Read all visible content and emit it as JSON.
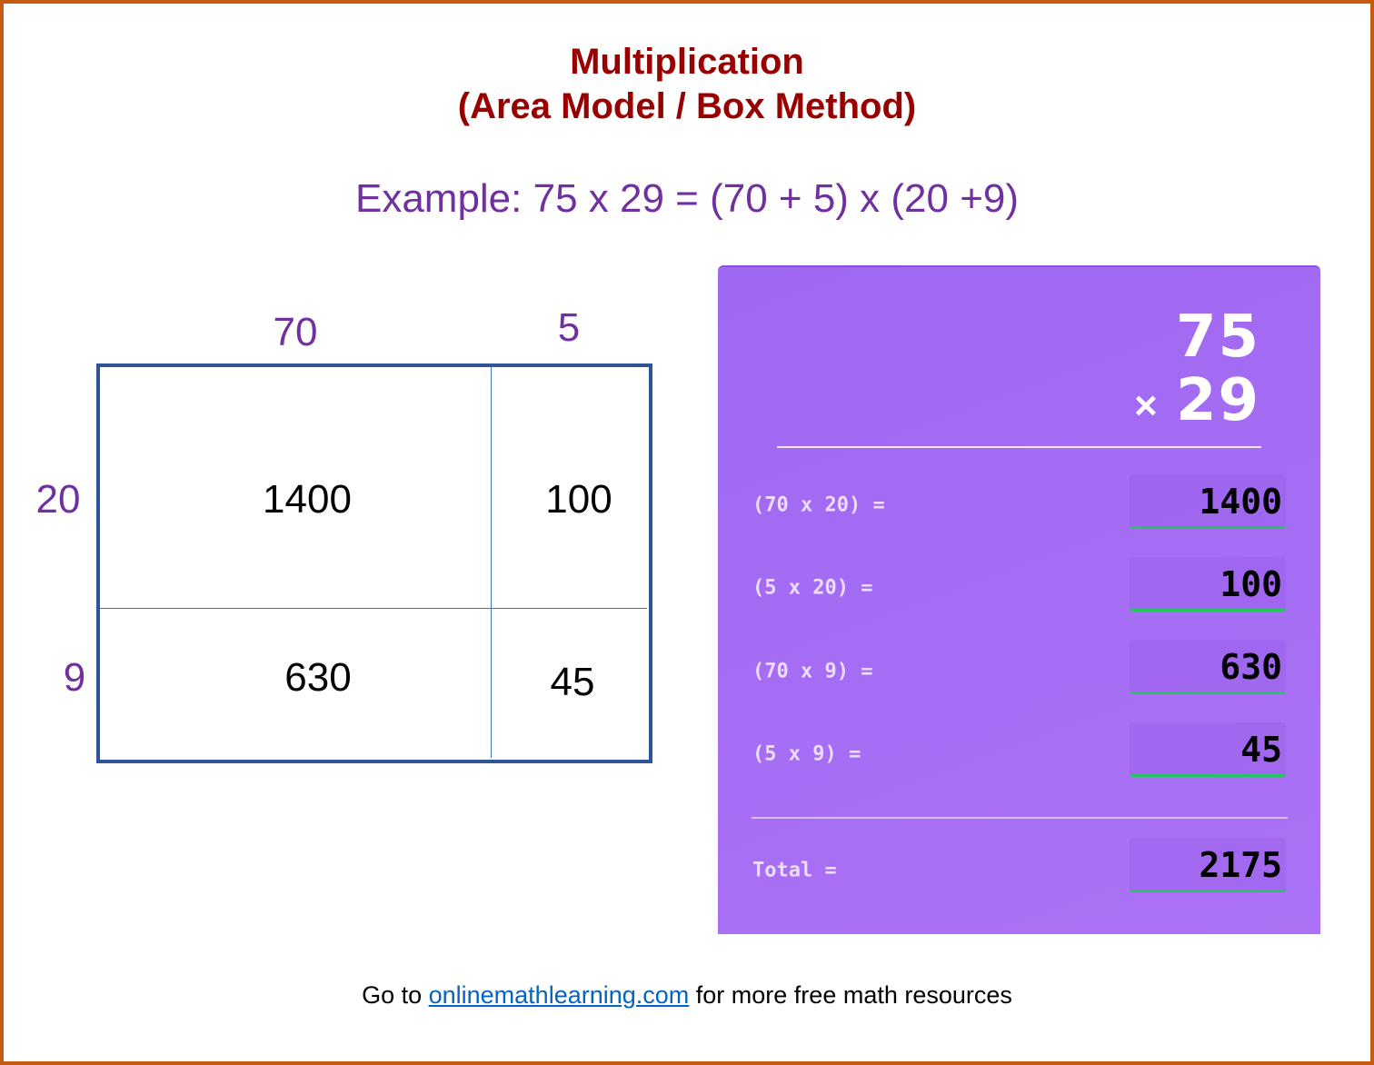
{
  "title": {
    "line1": "Multiplication",
    "line2": "(Area Model / Box Method)"
  },
  "example": "Example: 75 x 29 = (70 + 5) x (20 +9)",
  "area_model": {
    "column_labels": [
      "70",
      "5"
    ],
    "row_labels": [
      "20",
      "9"
    ],
    "cells": [
      [
        "1400",
        "100"
      ],
      [
        "630",
        "45"
      ]
    ]
  },
  "calculator": {
    "top": "75",
    "operator": "×",
    "bottom": "29",
    "rows": [
      {
        "label": "(70 x 20) =",
        "value": "1400"
      },
      {
        "label": "(5 x 20) =",
        "value": "100"
      },
      {
        "label": "(70 x 9) =",
        "value": "630"
      },
      {
        "label": "(5 x 9) =",
        "value": "45"
      }
    ],
    "total_label": "Total =",
    "total_value": "2175"
  },
  "footer": {
    "prefix": "Go to ",
    "link": "onlinemathlearning.com",
    "suffix": " for more free math resources"
  },
  "colors": {
    "border": "#c55a11",
    "title": "#990000",
    "accent": "#7030a0",
    "panel": "#a46df3",
    "underline": "#22c55e"
  }
}
